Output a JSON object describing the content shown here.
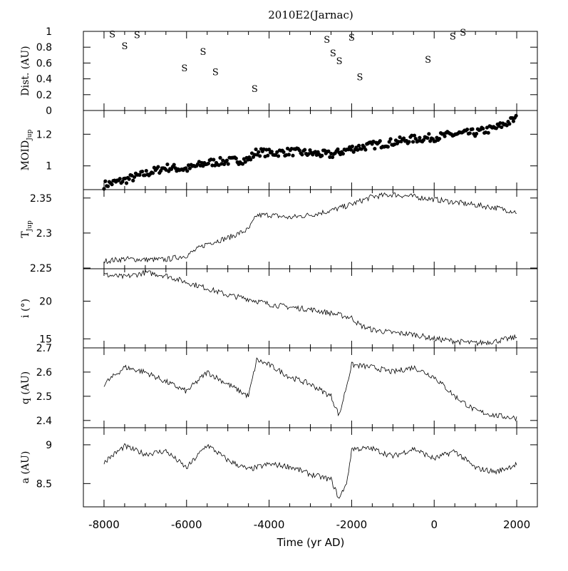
{
  "chart_data": [
    {
      "type": "scatter",
      "panel": "dist",
      "title": "2010E2(Jarnac)",
      "ylabel": "Dist. (AU)",
      "xlim": [
        -8500,
        2500
      ],
      "ylim": [
        0,
        1
      ],
      "yticks": [
        0,
        0.2,
        0.4,
        0.6,
        0.8,
        1
      ],
      "ytick_labels": [
        "0",
        "0.2",
        "0.4",
        "0.6",
        "0.8",
        "1"
      ],
      "marker": "S",
      "points": [
        {
          "x": -7800,
          "y": 0.97
        },
        {
          "x": -7500,
          "y": 0.82
        },
        {
          "x": -7200,
          "y": 0.96
        },
        {
          "x": -6050,
          "y": 0.54
        },
        {
          "x": -5600,
          "y": 0.75
        },
        {
          "x": -5300,
          "y": 0.49
        },
        {
          "x": -4350,
          "y": 0.28
        },
        {
          "x": -2600,
          "y": 0.9
        },
        {
          "x": -2450,
          "y": 0.73
        },
        {
          "x": -2300,
          "y": 0.63
        },
        {
          "x": -2000,
          "y": 0.93
        },
        {
          "x": -1800,
          "y": 0.43
        },
        {
          "x": -150,
          "y": 0.65
        },
        {
          "x": 450,
          "y": 0.94
        },
        {
          "x": 700,
          "y": 0.99
        }
      ]
    },
    {
      "type": "scatter",
      "panel": "moid",
      "ylabel_main": "MOID",
      "ylabel_sub": "Jup",
      "xlim": [
        -8500,
        2500
      ],
      "ylim": [
        0.85,
        1.35
      ],
      "yticks": [
        1,
        1.2
      ],
      "ytick_labels": [
        "1",
        "1.2"
      ],
      "x": [
        -8000,
        -7500,
        -7000,
        -6500,
        -6000,
        -5500,
        -5000,
        -4500,
        -4300,
        -4000,
        -3500,
        -3000,
        -2500,
        -2000,
        -1500,
        -1000,
        -500,
        0,
        500,
        1000,
        1500,
        2000
      ],
      "values": [
        0.88,
        0.91,
        0.95,
        0.99,
        0.98,
        1.02,
        1.03,
        1.04,
        1.09,
        1.08,
        1.09,
        1.08,
        1.07,
        1.11,
        1.13,
        1.15,
        1.17,
        1.18,
        1.2,
        1.21,
        1.24,
        1.3
      ]
    },
    {
      "type": "line",
      "panel": "tjup",
      "ylabel_main": "T",
      "ylabel_sub": "Jup",
      "xlim": [
        -8500,
        2500
      ],
      "ylim": [
        2.249,
        2.362
      ],
      "yticks": [
        2.25,
        2.3,
        2.35
      ],
      "ytick_labels": [
        "2.25",
        "2.3",
        "2.35"
      ],
      "x": [
        -8000,
        -7500,
        -7000,
        -6500,
        -6000,
        -5500,
        -5000,
        -4500,
        -4300,
        -4000,
        -3500,
        -3000,
        -2500,
        -2000,
        -1500,
        -1000,
        -500,
        0,
        500,
        1000,
        1500,
        2000
      ],
      "values": [
        2.26,
        2.263,
        2.262,
        2.262,
        2.268,
        2.285,
        2.293,
        2.305,
        2.325,
        2.326,
        2.322,
        2.326,
        2.332,
        2.341,
        2.352,
        2.355,
        2.352,
        2.348,
        2.344,
        2.34,
        2.336,
        2.33
      ]
    },
    {
      "type": "line",
      "panel": "incl",
      "ylabel": "i (°)",
      "xlim": [
        -8500,
        2500
      ],
      "ylim": [
        13.8,
        24.3
      ],
      "yticks": [
        15,
        20
      ],
      "ytick_labels": [
        "15",
        "20"
      ],
      "x": [
        -8000,
        -7500,
        -7000,
        -6500,
        -6000,
        -5500,
        -5000,
        -4500,
        -4000,
        -3500,
        -3000,
        -2500,
        -2000,
        -1800,
        -1500,
        -1000,
        -500,
        0,
        500,
        1000,
        1500,
        2000
      ],
      "values": [
        23.5,
        23.2,
        23.8,
        23.4,
        22.5,
        21.7,
        20.8,
        20.3,
        19.6,
        19.2,
        18.9,
        18.4,
        17.8,
        16.8,
        16.2,
        15.8,
        15.6,
        15.0,
        14.7,
        14.4,
        14.7,
        15.2
      ]
    },
    {
      "type": "line",
      "panel": "q",
      "ylabel": "q (AU)",
      "xlim": [
        -8500,
        2500
      ],
      "ylim": [
        2.37,
        2.7
      ],
      "yticks": [
        2.4,
        2.5,
        2.6,
        2.7
      ],
      "ytick_labels": [
        "2.4",
        "2.5",
        "2.6",
        "2.7"
      ],
      "x": [
        -8000,
        -7500,
        -7000,
        -6500,
        -6000,
        -5500,
        -5000,
        -4500,
        -4300,
        -4000,
        -3500,
        -3000,
        -2500,
        -2300,
        -2000,
        -1500,
        -1000,
        -500,
        0,
        500,
        1000,
        1500,
        2000
      ],
      "values": [
        2.55,
        2.62,
        2.6,
        2.56,
        2.52,
        2.6,
        2.55,
        2.5,
        2.65,
        2.63,
        2.58,
        2.55,
        2.5,
        2.42,
        2.63,
        2.62,
        2.6,
        2.62,
        2.58,
        2.5,
        2.44,
        2.42,
        2.41
      ]
    },
    {
      "type": "line",
      "panel": "a",
      "ylabel": "a (AU)",
      "xlabel": "Time (yr AD)",
      "xlim": [
        -8500,
        2500
      ],
      "ylim": [
        8.2,
        9.22
      ],
      "yticks": [
        8.5,
        9
      ],
      "ytick_labels": [
        "8.5",
        "9"
      ],
      "xticks": [
        -8000,
        -6000,
        -4000,
        -2000,
        0,
        2000
      ],
      "xtick_labels": [
        "-8000",
        "-6000",
        "-4000",
        "-2000",
        "0",
        "2000"
      ],
      "x": [
        -8000,
        -7500,
        -7000,
        -6500,
        -6000,
        -5500,
        -5000,
        -4500,
        -4000,
        -3500,
        -3000,
        -2500,
        -2300,
        -2100,
        -2000,
        -1500,
        -1000,
        -500,
        0,
        500,
        1000,
        1500,
        2000
      ],
      "values": [
        8.78,
        8.98,
        8.88,
        8.92,
        8.7,
        9.0,
        8.8,
        8.68,
        8.75,
        8.72,
        8.62,
        8.55,
        8.3,
        8.55,
        8.95,
        8.95,
        8.85,
        8.95,
        8.82,
        8.92,
        8.7,
        8.65,
        8.75
      ]
    }
  ]
}
